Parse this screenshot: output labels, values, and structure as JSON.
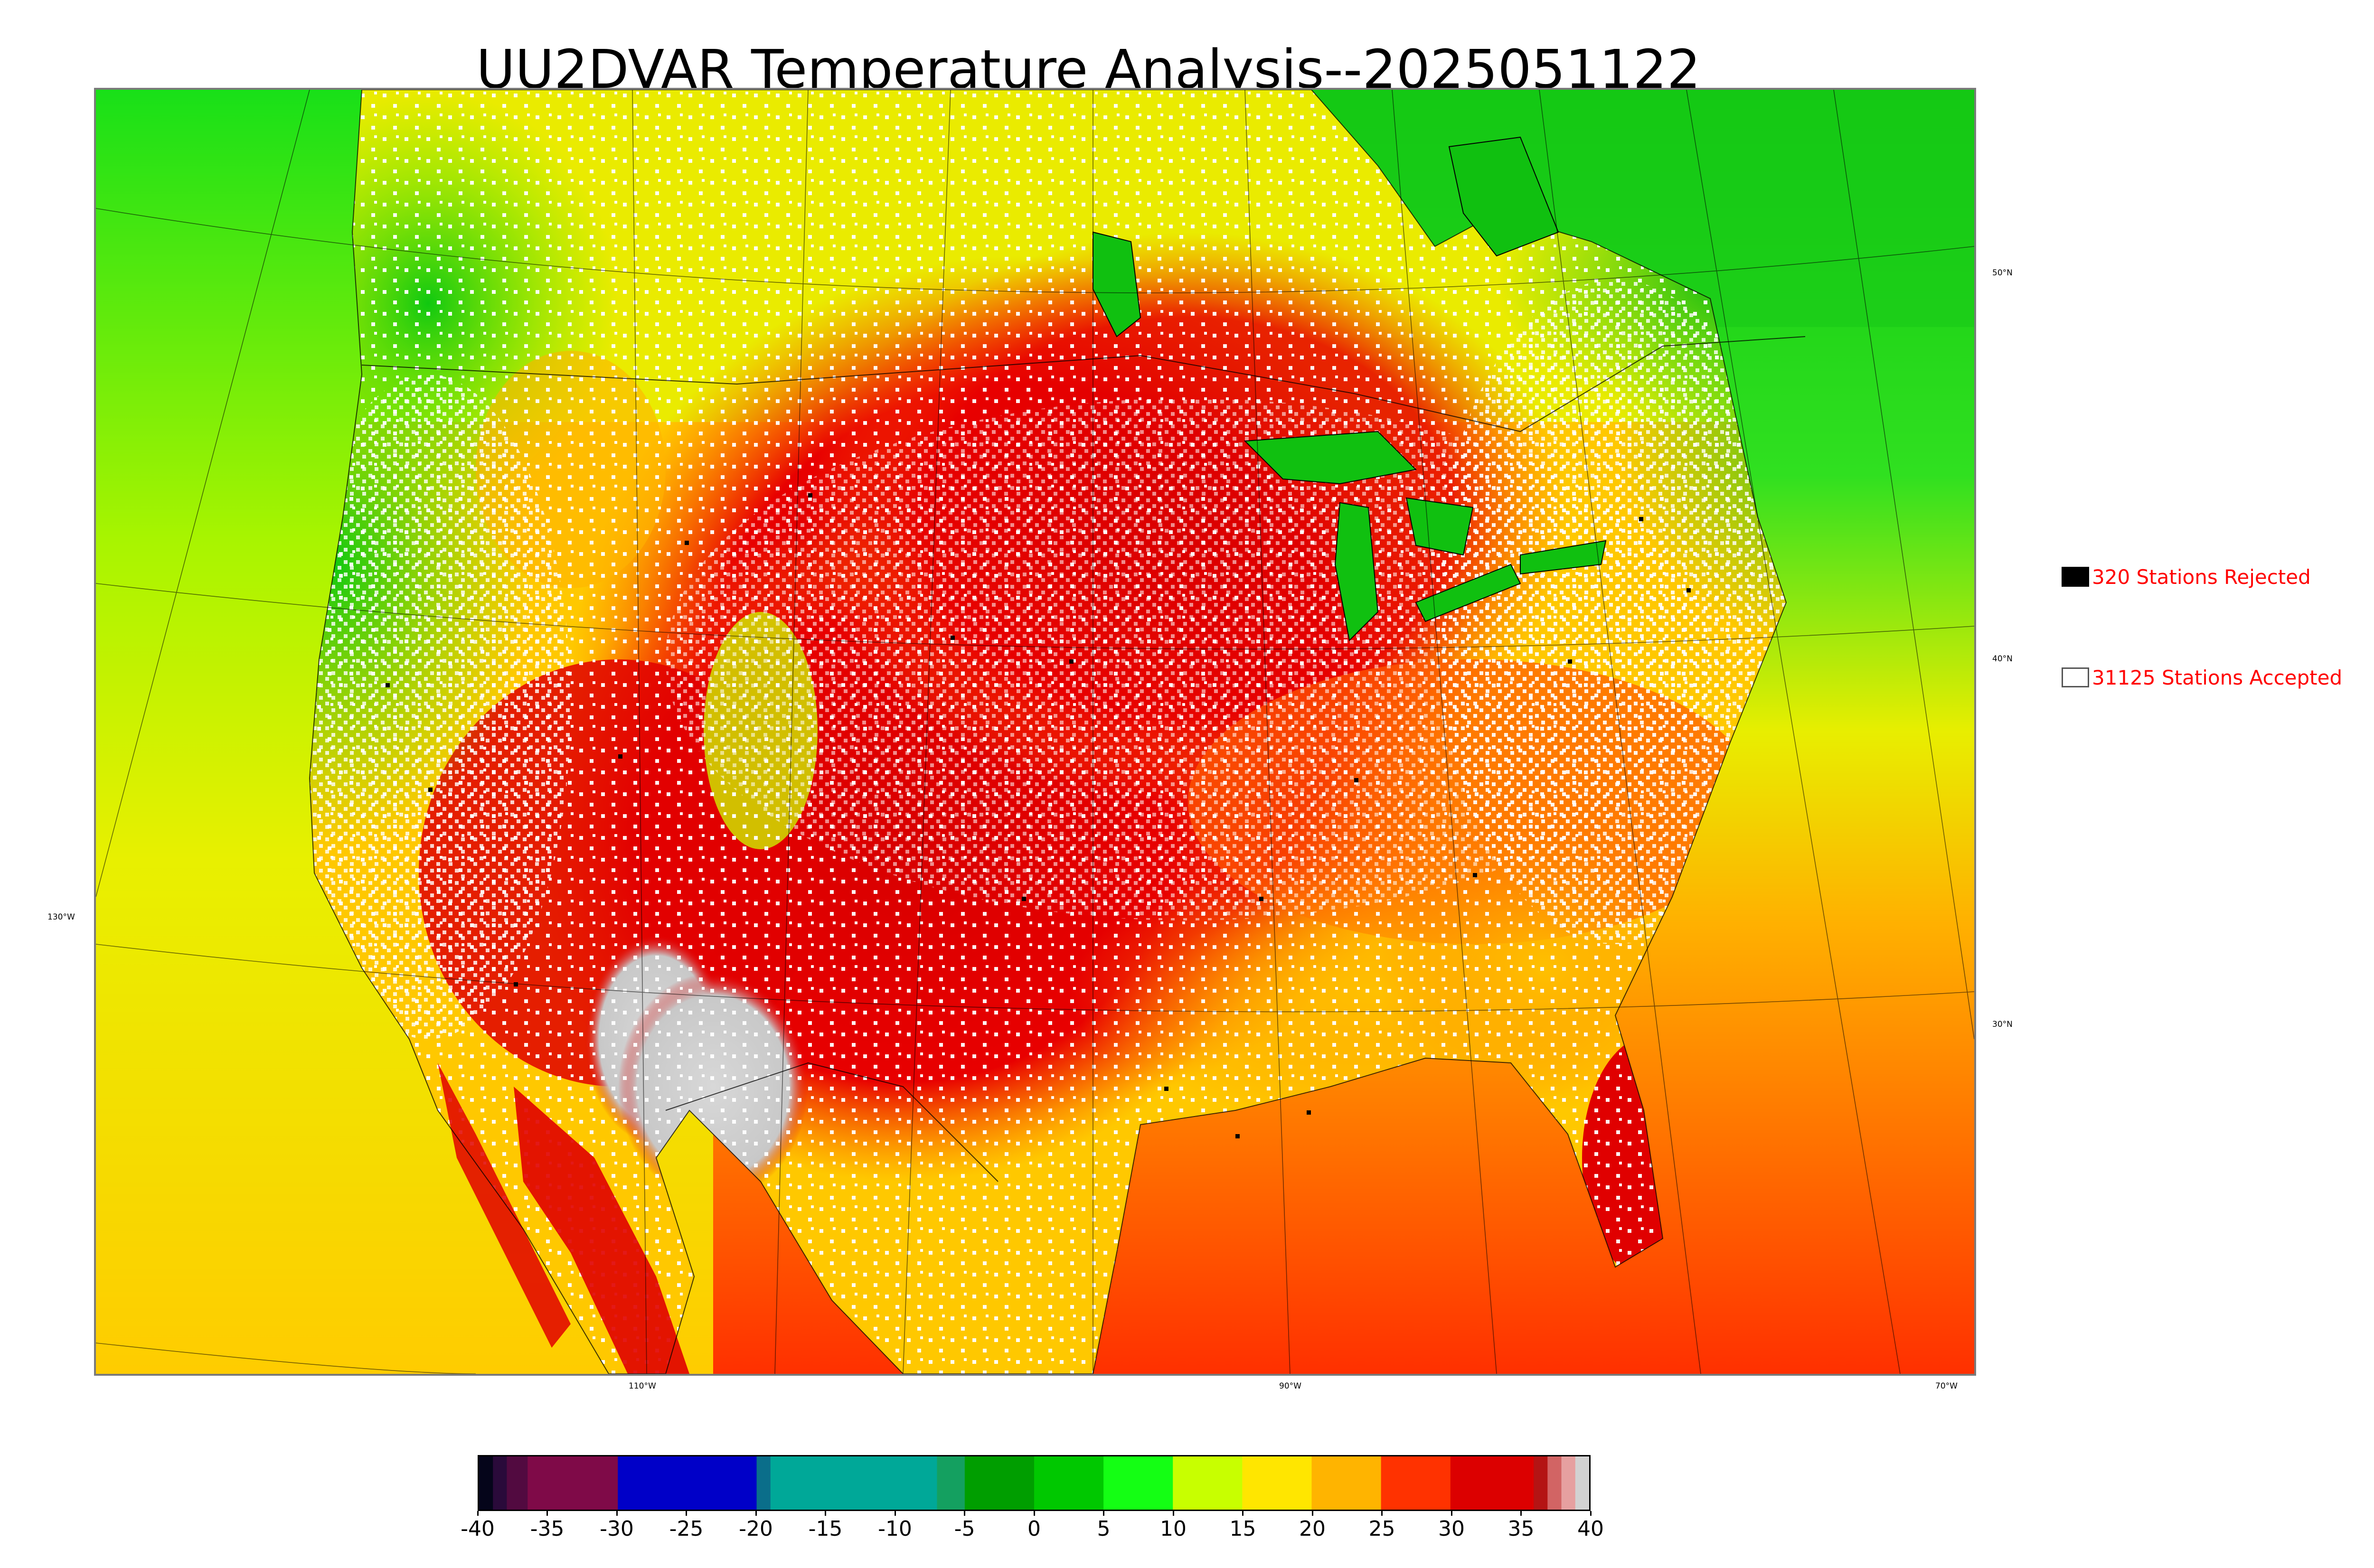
{
  "title": "UU2DVAR Temperature Analysis--2025051122",
  "map": {
    "longitude_labels": [
      "110°W",
      "90°W",
      "70°W"
    ],
    "latitude_labels": [
      "50°N",
      "40°N",
      "30°N"
    ],
    "left_longitude_label": "130°W",
    "temperature_field_colors": {
      "cold": "#22dd22",
      "cool": "#ccff00",
      "mild": "#ffd700",
      "warm": "#ff7f00",
      "hot": "#ff0000",
      "very_hot": "#d40000",
      "extreme": "#cfcfcf"
    },
    "station_marker_accepted_color": "#ffffff",
    "station_marker_rejected_color": "#000000"
  },
  "legend": {
    "rejected": {
      "label": "320 Stations Rejected",
      "swatch_color": "#000000"
    },
    "accepted": {
      "label": "31125 Stations Accepted",
      "swatch_color": "#ffffff"
    }
  },
  "colorbar": {
    "min": -40,
    "max": 40,
    "tick_labels": [
      "-40",
      "-35",
      "-30",
      "-25",
      "-20",
      "-15",
      "-10",
      "-5",
      "0",
      "5",
      "10",
      "15",
      "20",
      "25",
      "30",
      "35",
      "40"
    ],
    "stops": [
      {
        "from": -40,
        "to": -39,
        "color": "#05051a"
      },
      {
        "from": -39,
        "to": -38,
        "color": "#2a0a3a"
      },
      {
        "from": -38,
        "to": -36.5,
        "color": "#520a40"
      },
      {
        "from": -36.5,
        "to": -30,
        "color": "#7f0a48"
      },
      {
        "from": -30,
        "to": -20,
        "color": "#0000c8"
      },
      {
        "from": -20,
        "to": -19,
        "color": "#0a6e8a"
      },
      {
        "from": -19,
        "to": -7,
        "color": "#00a898"
      },
      {
        "from": -7,
        "to": -5,
        "color": "#14a060"
      },
      {
        "from": -5,
        "to": 0,
        "color": "#009e00"
      },
      {
        "from": 0,
        "to": 5,
        "color": "#00c800"
      },
      {
        "from": 5,
        "to": 10,
        "color": "#14ff14"
      },
      {
        "from": 10,
        "to": 15,
        "color": "#c8ff00"
      },
      {
        "from": 15,
        "to": 20,
        "color": "#ffe600"
      },
      {
        "from": 20,
        "to": 25,
        "color": "#ffb400"
      },
      {
        "from": 25,
        "to": 30,
        "color": "#ff3200"
      },
      {
        "from": 30,
        "to": 36,
        "color": "#dc0000"
      },
      {
        "from": 36,
        "to": 37,
        "color": "#b41414"
      },
      {
        "from": 37,
        "to": 38,
        "color": "#d26464"
      },
      {
        "from": 38,
        "to": 39,
        "color": "#e6a0a0"
      },
      {
        "from": 39,
        "to": 40,
        "color": "#d2d2d2"
      }
    ]
  }
}
